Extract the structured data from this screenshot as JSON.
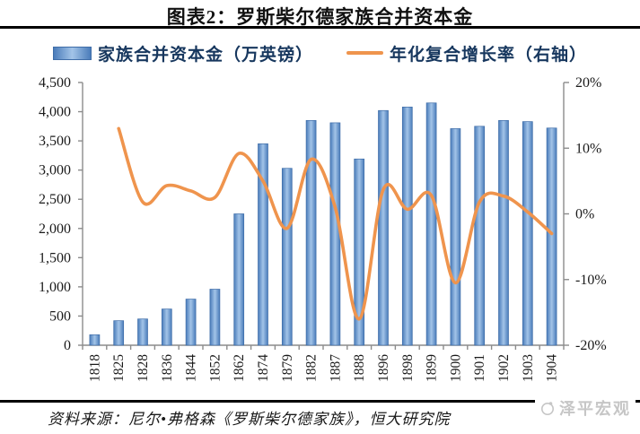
{
  "title": "图表2：罗斯柴尔德家族合并资本金",
  "legend": {
    "bar_label": "家族合并资本金（万英镑）",
    "line_label": "年化复合增长率（右轴）"
  },
  "footer": {
    "source": "资料来源：尼尔•弗格森《罗斯柴尔德家族》，恒大研究院",
    "watermark": "泽平宏观"
  },
  "colors": {
    "bar_edge": "#4a7cba",
    "bar_light": "#a3c4e8",
    "bar_stroke": "#3f6da8",
    "line": "#ef944d",
    "axis": "#8c8c8c",
    "text": "#1a1a1a",
    "legend_text": "#17375e",
    "watermark": "#c6c6c6"
  },
  "chart_data": {
    "type": "bar+line",
    "title": "图表2：罗斯柴尔德家族合并资本金",
    "categories": [
      "1818",
      "1825",
      "1828",
      "1836",
      "1844",
      "1852",
      "1862",
      "1874",
      "1879",
      "1882",
      "1887",
      "1888",
      "1896",
      "1898",
      "1899",
      "1900",
      "1901",
      "1902",
      "1903",
      "1904"
    ],
    "series": [
      {
        "name": "家族合并资本金（万英镑）",
        "type": "bar",
        "axis": "left",
        "values": [
          180,
          420,
          450,
          620,
          790,
          960,
          2250,
          3450,
          3030,
          3850,
          3810,
          3190,
          4020,
          4080,
          4150,
          3710,
          3750,
          3850,
          3830,
          3720
        ]
      },
      {
        "name": "年化复合增长率（右轴）",
        "type": "line",
        "axis": "right",
        "values": [
          null,
          13,
          1.8,
          4.3,
          3.5,
          2.5,
          9.2,
          5,
          -2.2,
          8.3,
          1,
          -16,
          3.7,
          0.7,
          2.8,
          -10.5,
          1.8,
          2.7,
          0.3,
          -3
        ]
      }
    ],
    "left_axis": {
      "min": 0,
      "max": 4500,
      "step": 500,
      "tick_labels": [
        "0",
        "500",
        "1,000",
        "1,500",
        "2,000",
        "2,500",
        "3,000",
        "3,500",
        "4,000",
        "4,500"
      ]
    },
    "right_axis": {
      "min": -20,
      "max": 20,
      "step": 10,
      "tick_labels": [
        "-20%",
        "-10%",
        "0%",
        "10%",
        "20%"
      ]
    },
    "grid": false,
    "legend_position": "top",
    "xlabel_rotation": -90
  }
}
